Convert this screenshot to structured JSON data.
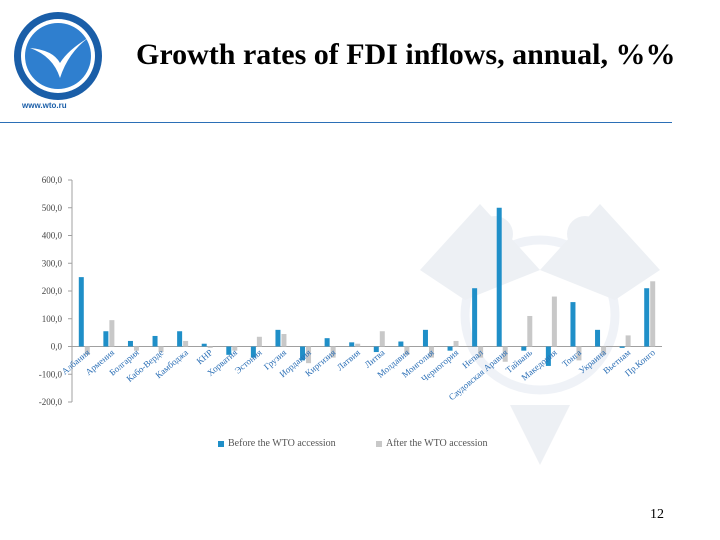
{
  "header": {
    "title": "Growth rates of FDI inflows, annual, %%",
    "logo_url": "www.wto.ru"
  },
  "footer": {
    "page_number": "12"
  },
  "colors": {
    "accent": "#2b6fb6",
    "before": "#1f8fc8",
    "after": "#c8c8c8"
  },
  "chart_data": {
    "type": "bar",
    "title": "",
    "xlabel": "",
    "ylabel": "",
    "ylim": [
      -200,
      600
    ],
    "yticks": [
      "-200,0",
      "-100,0",
      "0,0",
      "100,0",
      "200,0",
      "300,0",
      "400,0",
      "500,0",
      "600,0"
    ],
    "grid": false,
    "legend_position": "bottom",
    "categories": [
      "Албания",
      "Армения",
      "Болгария",
      "Кабо-Верде",
      "Камбоджа",
      "КНР",
      "Хорватия",
      "Эстония",
      "Грузия",
      "Иордания",
      "Киргизия",
      "Латвия",
      "Литва",
      "Молдавия",
      "Монголия",
      "Черногория",
      "Непал",
      "Саудовская Аравия",
      "Тайвань",
      "Македония",
      "Тонга",
      "Украина",
      "Вьетнам",
      "Пр.Конго"
    ],
    "series": [
      {
        "name": "Before the WTO accession",
        "values": [
          250,
          55,
          20,
          38,
          55,
          10,
          -30,
          -40,
          60,
          -50,
          30,
          15,
          -20,
          18,
          60,
          -15,
          210,
          500,
          -15,
          -70,
          160,
          60,
          -5,
          210
        ]
      },
      {
        "name": "After the WTO accession",
        "values": [
          -30,
          95,
          -15,
          -20,
          20,
          -5,
          -15,
          35,
          45,
          -60,
          -40,
          10,
          55,
          -30,
          -40,
          20,
          -40,
          -55,
          110,
          180,
          -50,
          -30,
          40,
          235
        ]
      }
    ]
  }
}
